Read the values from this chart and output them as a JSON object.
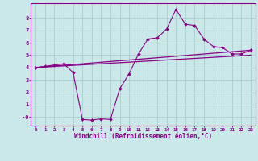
{
  "xlabel": "Windchill (Refroidissement éolien,°C)",
  "background_color": "#cbe8e8",
  "grid_color": "#aacccc",
  "line_color": "#880088",
  "xlim": [
    -0.5,
    23.5
  ],
  "ylim": [
    -0.7,
    9.2
  ],
  "yticks": [
    0,
    1,
    2,
    3,
    4,
    5,
    6,
    7,
    8
  ],
  "ytick_labels": [
    "-0",
    "1",
    "2",
    "3",
    "4",
    "5",
    "6",
    "7",
    "8"
  ],
  "xticks": [
    0,
    1,
    2,
    3,
    4,
    5,
    6,
    7,
    8,
    9,
    10,
    11,
    12,
    13,
    14,
    15,
    16,
    17,
    18,
    19,
    20,
    21,
    22,
    23
  ],
  "main_line_x": [
    0,
    1,
    2,
    3,
    4,
    5,
    6,
    7,
    8,
    9,
    10,
    11,
    12,
    13,
    14,
    15,
    16,
    17,
    18,
    19,
    20,
    21,
    22,
    23
  ],
  "main_line_y": [
    4.0,
    4.1,
    4.2,
    4.3,
    3.6,
    -0.2,
    -0.25,
    -0.15,
    -0.2,
    2.3,
    3.5,
    5.1,
    6.3,
    6.4,
    7.1,
    8.7,
    7.5,
    7.4,
    6.3,
    5.7,
    5.6,
    5.1,
    5.1,
    5.4
  ],
  "upper_line_x": [
    0,
    23
  ],
  "upper_line_y": [
    4.0,
    5.4
  ],
  "lower_line_x": [
    0,
    23
  ],
  "lower_line_y": [
    4.0,
    5.0
  ]
}
